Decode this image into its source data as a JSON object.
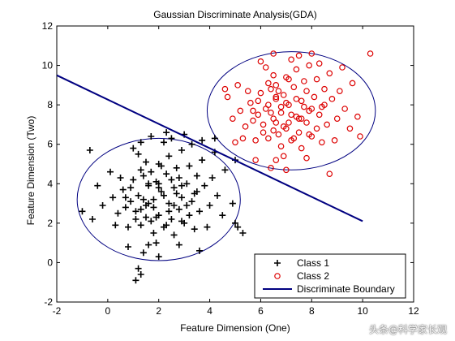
{
  "watermark": "头条@科学家长观",
  "chart_data": {
    "type": "scatter",
    "title": "Gaussian Discriminate Analysis(GDA)",
    "xlabel": "Feature Dimension (One)",
    "ylabel": "Feature Dimension (Two)",
    "xlim": [
      -2,
      12
    ],
    "ylim": [
      -2,
      12
    ],
    "xticks": [
      -2,
      0,
      2,
      4,
      6,
      8,
      10,
      12
    ],
    "yticks": [
      -2,
      0,
      2,
      4,
      6,
      8,
      10,
      12
    ],
    "grid": false,
    "legend_position": "bottom-right",
    "series": [
      {
        "name": "Class 1",
        "marker": "plus",
        "color": "#000000",
        "points": [
          [
            1.8,
            3.2
          ],
          [
            2.1,
            3.6
          ],
          [
            1.5,
            2.9
          ],
          [
            2.4,
            3.0
          ],
          [
            1.9,
            4.1
          ],
          [
            2.6,
            3.8
          ],
          [
            1.2,
            3.4
          ],
          [
            2.0,
            2.4
          ],
          [
            2.8,
            2.7
          ],
          [
            1.6,
            3.9
          ],
          [
            2.3,
            4.5
          ],
          [
            1.1,
            2.6
          ],
          [
            2.9,
            3.3
          ],
          [
            1.7,
            2.1
          ],
          [
            2.5,
            2.2
          ],
          [
            1.4,
            4.4
          ],
          [
            3.1,
            4.0
          ],
          [
            0.9,
            3.1
          ],
          [
            2.2,
            1.8
          ],
          [
            3.3,
            3.1
          ],
          [
            1.0,
            4.2
          ],
          [
            2.7,
            4.8
          ],
          [
            1.3,
            1.9
          ],
          [
            3.5,
            3.6
          ],
          [
            0.7,
            2.8
          ],
          [
            2.0,
            5.0
          ],
          [
            3.0,
            2.0
          ],
          [
            1.8,
            1.5
          ],
          [
            3.6,
            2.6
          ],
          [
            0.6,
            3.7
          ],
          [
            2.4,
            5.4
          ],
          [
            1.5,
            5.1
          ],
          [
            3.2,
            4.9
          ],
          [
            0.8,
            1.8
          ],
          [
            2.6,
            1.4
          ],
          [
            3.8,
            3.9
          ],
          [
            0.4,
            2.5
          ],
          [
            1.2,
            5.5
          ],
          [
            3.4,
            1.7
          ],
          [
            2.9,
            5.7
          ],
          [
            0.5,
            4.3
          ],
          [
            4.0,
            2.9
          ],
          [
            1.9,
            1.0
          ],
          [
            2.2,
            6.1
          ],
          [
            0.2,
            3.3
          ],
          [
            4.1,
            4.3
          ],
          [
            1.6,
            0.9
          ],
          [
            3.7,
            5.2
          ],
          [
            0.3,
            1.9
          ],
          [
            2.8,
            0.9
          ],
          [
            4.3,
            3.4
          ],
          [
            1.0,
            5.8
          ],
          [
            3.9,
            1.8
          ],
          [
            0.1,
            4.6
          ],
          [
            2.5,
            6.3
          ],
          [
            4.5,
            2.4
          ],
          [
            1.4,
            0.5
          ],
          [
            3.3,
            6.0
          ],
          [
            -0.2,
            2.9
          ],
          [
            4.6,
            4.7
          ],
          [
            2.0,
            0.3
          ],
          [
            0.8,
            0.8
          ],
          [
            4.2,
            5.6
          ],
          [
            -0.4,
            3.9
          ],
          [
            3.0,
            6.5
          ],
          [
            4.9,
            3.0
          ],
          [
            1.7,
            6.4
          ],
          [
            5.0,
            2.0
          ],
          [
            -0.6,
            2.2
          ],
          [
            3.6,
            0.6
          ],
          [
            1.2,
            -0.3
          ],
          [
            1.3,
            -0.6
          ],
          [
            1.1,
            -0.9
          ],
          [
            -1.0,
            2.6
          ],
          [
            5.1,
            1.8
          ],
          [
            5.3,
            1.5
          ],
          [
            2.3,
            6.6
          ],
          [
            3.7,
            6.2
          ],
          [
            4.2,
            6.3
          ],
          [
            5.0,
            5.2
          ],
          [
            -0.7,
            5.7
          ],
          [
            1.3,
            6.1
          ],
          [
            2.9,
            3.9
          ],
          [
            2.0,
            4.0
          ],
          [
            1.6,
            3.0
          ],
          [
            2.4,
            2.6
          ],
          [
            1.8,
            2.8
          ],
          [
            2.2,
            3.4
          ],
          [
            1.4,
            3.2
          ],
          [
            2.7,
            3.5
          ],
          [
            1.9,
            2.3
          ],
          [
            2.5,
            4.2
          ],
          [
            1.3,
            2.7
          ],
          [
            3.1,
            2.9
          ],
          [
            2.0,
            3.8
          ],
          [
            1.7,
            4.6
          ],
          [
            2.8,
            4.3
          ],
          [
            1.5,
            2.3
          ],
          [
            2.3,
            1.9
          ],
          [
            3.4,
            3.5
          ],
          [
            0.9,
            3.8
          ],
          [
            2.6,
            2.9
          ],
          [
            1.1,
            2.2
          ],
          [
            3.2,
            2.4
          ],
          [
            2.1,
            4.9
          ],
          [
            1.6,
            4.0
          ],
          [
            2.9,
            2.1
          ],
          [
            0.7,
            3.3
          ],
          [
            3.5,
            4.4
          ],
          [
            1.3,
            4.7
          ]
        ]
      },
      {
        "name": "Class 2",
        "marker": "circle",
        "color": "#dd0000",
        "points": [
          [
            6.8,
            7.6
          ],
          [
            7.1,
            8.0
          ],
          [
            6.5,
            7.3
          ],
          [
            7.4,
            7.4
          ],
          [
            6.9,
            8.5
          ],
          [
            7.6,
            8.2
          ],
          [
            6.2,
            7.8
          ],
          [
            7.0,
            6.8
          ],
          [
            7.8,
            7.1
          ],
          [
            6.6,
            8.3
          ],
          [
            7.3,
            8.9
          ],
          [
            6.1,
            7.0
          ],
          [
            7.9,
            7.7
          ],
          [
            6.7,
            6.5
          ],
          [
            7.5,
            6.6
          ],
          [
            6.4,
            8.8
          ],
          [
            8.1,
            8.4
          ],
          [
            5.9,
            7.5
          ],
          [
            7.2,
            6.2
          ],
          [
            8.3,
            7.5
          ],
          [
            6.0,
            8.6
          ],
          [
            7.7,
            9.2
          ],
          [
            6.3,
            6.3
          ],
          [
            8.5,
            8.0
          ],
          [
            5.7,
            7.2
          ],
          [
            7.0,
            9.4
          ],
          [
            8.0,
            6.4
          ],
          [
            6.8,
            5.9
          ],
          [
            8.6,
            7.0
          ],
          [
            5.6,
            8.1
          ],
          [
            7.4,
            9.8
          ],
          [
            6.5,
            9.5
          ],
          [
            8.2,
            9.3
          ],
          [
            5.8,
            6.2
          ],
          [
            7.6,
            5.8
          ],
          [
            8.8,
            8.3
          ],
          [
            5.4,
            6.9
          ],
          [
            6.2,
            9.9
          ],
          [
            8.4,
            6.1
          ],
          [
            7.9,
            10.0
          ],
          [
            5.5,
            8.7
          ],
          [
            9.0,
            7.3
          ],
          [
            6.9,
            5.4
          ],
          [
            7.2,
            10.3
          ],
          [
            5.2,
            7.7
          ],
          [
            9.1,
            8.7
          ],
          [
            6.6,
            5.2
          ],
          [
            8.7,
            9.6
          ],
          [
            5.3,
            6.3
          ],
          [
            7.8,
            5.3
          ],
          [
            9.3,
            7.8
          ],
          [
            6.0,
            10.2
          ],
          [
            8.9,
            6.2
          ],
          [
            5.1,
            9.0
          ],
          [
            7.5,
            10.5
          ],
          [
            9.5,
            6.8
          ],
          [
            6.4,
            4.8
          ],
          [
            8.3,
            10.1
          ],
          [
            4.9,
            7.3
          ],
          [
            9.6,
            9.1
          ],
          [
            7.0,
            4.7
          ],
          [
            5.8,
            5.2
          ],
          [
            9.2,
            9.9
          ],
          [
            4.7,
            8.4
          ],
          [
            8.0,
            10.6
          ],
          [
            9.8,
            7.4
          ],
          [
            6.5,
            10.6
          ],
          [
            10.3,
            10.6
          ],
          [
            9.9,
            6.4
          ],
          [
            8.7,
            4.5
          ],
          [
            4.6,
            8.8
          ],
          [
            5.0,
            6.1
          ],
          [
            6.8,
            7.9
          ],
          [
            7.2,
            7.5
          ],
          [
            6.6,
            7.1
          ],
          [
            7.4,
            8.3
          ],
          [
            6.9,
            6.9
          ],
          [
            7.7,
            7.9
          ],
          [
            6.3,
            8.0
          ],
          [
            7.1,
            7.1
          ],
          [
            6.7,
            8.7
          ],
          [
            7.5,
            7.3
          ],
          [
            6.4,
            7.6
          ],
          [
            8.0,
            7.8
          ],
          [
            7.0,
            8.1
          ],
          [
            6.6,
            9.0
          ],
          [
            7.8,
            8.7
          ],
          [
            6.5,
            6.7
          ],
          [
            7.3,
            6.3
          ],
          [
            8.4,
            7.9
          ],
          [
            5.9,
            8.2
          ],
          [
            7.6,
            7.3
          ],
          [
            6.1,
            6.6
          ],
          [
            8.2,
            6.8
          ],
          [
            7.1,
            9.3
          ],
          [
            6.6,
            8.4
          ],
          [
            7.9,
            6.5
          ],
          [
            5.7,
            7.7
          ],
          [
            8.5,
            8.8
          ],
          [
            6.3,
            9.1
          ]
        ]
      },
      {
        "name": "Discriminate Boundary",
        "type": "line",
        "color": "#000080",
        "points": [
          [
            -2,
            9.5
          ],
          [
            10,
            2.1
          ]
        ]
      }
    ],
    "ellipses": [
      {
        "center": [
          2.0,
          3.2
        ],
        "semi_axes": [
          3.2,
          3.1
        ],
        "color": "#000080"
      },
      {
        "center": [
          7.2,
          7.7
        ],
        "semi_axes": [
          3.3,
          3.0
        ],
        "color": "#000080"
      }
    ]
  }
}
